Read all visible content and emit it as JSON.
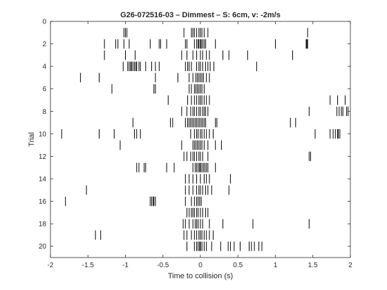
{
  "chart_data": {
    "type": "raster",
    "title": "G26-072516-03 –  Dimmest – S: 6cm, v: -2m/s",
    "xlabel": "Time to collision (s)",
    "ylabel": "Trial",
    "xlim": [
      -2,
      2
    ],
    "ylim": [
      0,
      21
    ],
    "y_reversed": true,
    "grid": false,
    "legend": "none",
    "tick_color": "#000000",
    "x_ticks": [
      -2,
      -1.5,
      -1,
      -0.5,
      0,
      0.5,
      1,
      1.5,
      2
    ],
    "x_tick_labels": [
      "-2",
      "-1.5",
      "-1",
      "-0.5",
      "0",
      "0.5",
      "1",
      "1.5",
      "2"
    ],
    "y_ticks": [
      0,
      2,
      4,
      6,
      8,
      10,
      12,
      14,
      16,
      18,
      20
    ],
    "y_tick_labels": [
      "0",
      "2",
      "4",
      "6",
      "8",
      "10",
      "12",
      "14",
      "16",
      "18",
      "20"
    ],
    "trials": [
      {
        "trial": 1,
        "spikes": [
          -1.02,
          -1.0,
          -0.98,
          -0.22,
          -0.12,
          -0.1,
          -0.08,
          -0.05,
          -0.02,
          0.0,
          0.02,
          0.05,
          0.1,
          1.43
        ]
      },
      {
        "trial": 2,
        "spikes": [
          -1.28,
          -1.13,
          -1.1,
          -1.02,
          -0.95,
          -0.67,
          -0.55,
          -0.53,
          -0.45,
          -0.2,
          -0.18,
          -0.08,
          -0.05,
          -0.03,
          -0.02,
          0.0,
          0.01,
          0.03,
          0.05,
          0.07,
          0.2,
          1.0,
          1.41,
          1.42,
          1.43
        ]
      },
      {
        "trial": 3,
        "spikes": [
          -1.28,
          -1.0,
          -0.87,
          -0.25,
          -0.18,
          -0.1,
          -0.05,
          0.0,
          0.03,
          0.08,
          0.12,
          0.3,
          0.38,
          0.63,
          1.23
        ]
      },
      {
        "trial": 4,
        "spikes": [
          -1.03,
          -0.97,
          -0.95,
          -0.93,
          -0.92,
          -0.9,
          -0.88,
          -0.86,
          -0.85,
          -0.82,
          -0.8,
          -0.73,
          -0.65,
          -0.6,
          -0.55,
          -0.2,
          -0.17,
          -0.15,
          -0.12,
          -0.05,
          -0.02,
          0.0,
          0.03,
          0.07,
          0.1,
          0.13,
          0.18,
          0.75
        ]
      },
      {
        "trial": 5,
        "spikes": [
          -1.6,
          -1.35,
          -0.6,
          -0.3,
          -0.15,
          -0.1,
          -0.06,
          -0.04,
          -0.02,
          0.0,
          0.02,
          0.04,
          0.08,
          0.12
        ]
      },
      {
        "trial": 6,
        "spikes": [
          -1.18,
          -0.62,
          -0.6,
          -0.15,
          -0.12,
          -0.08,
          -0.06,
          -0.04,
          -0.02,
          0.0,
          0.02,
          0.05
        ]
      },
      {
        "trial": 7,
        "spikes": [
          -0.43,
          -0.17,
          -0.12,
          -0.08,
          -0.05,
          -0.02,
          0.0,
          0.02,
          0.05,
          0.08,
          0.12,
          1.73,
          1.83,
          1.93
        ]
      },
      {
        "trial": 8,
        "spikes": [
          -0.25,
          -0.18,
          -0.13,
          -0.1,
          -0.08,
          -0.05,
          -0.02,
          0.0,
          0.03,
          0.05,
          0.07,
          0.1,
          1.45,
          1.82,
          1.85,
          1.88,
          1.9,
          1.95,
          1.97
        ]
      },
      {
        "trial": 9,
        "spikes": [
          -0.9,
          -0.4,
          -0.37,
          -0.2,
          -0.17,
          -0.15,
          -0.13,
          -0.11,
          -0.09,
          -0.07,
          -0.05,
          -0.03,
          -0.01,
          0.01,
          0.03,
          0.05,
          0.07,
          0.2,
          0.22,
          1.2,
          1.27
        ]
      },
      {
        "trial": 10,
        "spikes": [
          -1.85,
          -1.35,
          -1.15,
          -0.88,
          -0.85,
          -0.8,
          -0.13,
          -0.08,
          -0.05,
          -0.03,
          0.0,
          0.02,
          0.05,
          0.08,
          0.12,
          0.17,
          1.53,
          1.73,
          1.77,
          1.8,
          1.83,
          1.84,
          1.86
        ]
      },
      {
        "trial": 11,
        "spikes": [
          -1.07,
          -0.25,
          -0.1,
          -0.08,
          -0.06,
          -0.04,
          -0.02,
          0.0,
          0.02,
          0.05,
          0.1,
          0.2,
          0.28
        ]
      },
      {
        "trial": 12,
        "spikes": [
          -0.22,
          -0.18,
          -0.13,
          -0.1,
          -0.08,
          -0.05,
          -0.02,
          0.0,
          0.03,
          0.1,
          1.45,
          1.47
        ]
      },
      {
        "trial": 13,
        "spikes": [
          -0.85,
          -0.82,
          -0.75,
          -0.73,
          -0.45,
          -0.35,
          -0.1,
          -0.07,
          -0.05,
          -0.03,
          -0.01,
          0.0,
          0.02,
          0.04,
          0.06,
          0.08,
          0.1,
          0.2
        ]
      },
      {
        "trial": 14,
        "spikes": [
          -0.2,
          -0.15,
          -0.1,
          -0.05,
          0.0,
          0.05,
          0.08,
          0.12,
          0.4
        ]
      },
      {
        "trial": 15,
        "spikes": [
          -1.52,
          -0.2,
          -0.15,
          -0.1,
          -0.05,
          -0.02,
          0.0,
          0.03,
          0.07,
          0.1,
          0.15,
          0.38
        ]
      },
      {
        "trial": 16,
        "spikes": [
          -1.8,
          -0.67,
          -0.65,
          -0.63,
          -0.62,
          -0.6,
          -0.2,
          -0.12,
          -0.08,
          -0.05,
          -0.03,
          -0.01,
          0.01
        ]
      },
      {
        "trial": 17,
        "spikes": [
          -0.18,
          -0.15,
          -0.12,
          -0.1,
          -0.08,
          -0.05,
          -0.03,
          0.0,
          0.03,
          0.07,
          0.1
        ]
      },
      {
        "trial": 18,
        "spikes": [
          -0.23,
          -0.2,
          -0.15,
          -0.1,
          -0.07,
          -0.05,
          -0.03,
          0.0,
          0.03,
          0.12,
          0.3,
          0.7,
          1.45
        ]
      },
      {
        "trial": 19,
        "spikes": [
          -1.4,
          -1.33,
          -0.22,
          -0.18,
          -0.12,
          -0.08,
          -0.05,
          -0.02,
          0.0,
          0.02,
          0.05,
          0.08,
          0.12,
          0.17
        ]
      },
      {
        "trial": 20,
        "spikes": [
          -0.18,
          -0.08,
          -0.05,
          -0.03,
          -0.01,
          0.0,
          0.02,
          0.05,
          0.08,
          0.15,
          0.27,
          0.37,
          0.4,
          0.45,
          0.53,
          0.65,
          0.68,
          0.72,
          0.78,
          0.82
        ]
      }
    ]
  }
}
